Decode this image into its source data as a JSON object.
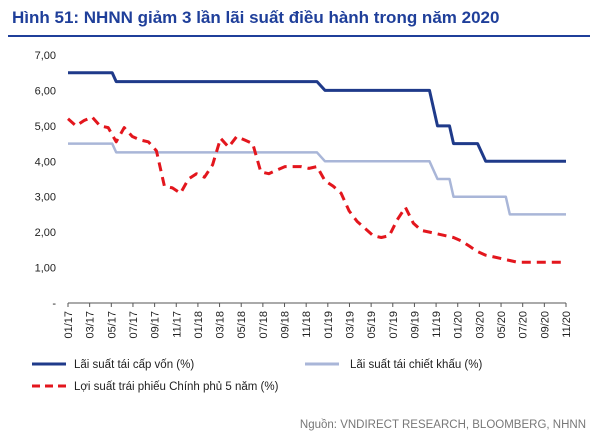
{
  "title": "Hình 51: NHNN giảm 3 lần lãi suất điều hành trong năm 2020",
  "source": "Nguồn: VNDIRECT RESEARCH, BLOOMBERG, NHNN",
  "colors": {
    "title": "#1f3f9a",
    "refinancing": "#1f3a8a",
    "discount": "#a9b6d8",
    "bond": "#e3161d"
  },
  "chart_data": {
    "type": "line",
    "ylim": [
      0,
      7
    ],
    "y_ticks": [
      "-",
      "1,00",
      "2,00",
      "3,00",
      "4,00",
      "5,00",
      "6,00",
      "7,00"
    ],
    "x_labels": [
      "01/17",
      "03/17",
      "05/17",
      "07/17",
      "09/17",
      "11/17",
      "01/18",
      "03/18",
      "05/18",
      "07/18",
      "09/18",
      "11/18",
      "01/19",
      "03/19",
      "05/19",
      "07/19",
      "09/19",
      "11/19",
      "01/20",
      "03/20",
      "05/20",
      "07/20",
      "09/20",
      "11/20"
    ],
    "grid": false,
    "legend_position": "bottom",
    "series": [
      {
        "name": "Lãi suất tái cấp vốn (%)",
        "style": "solid",
        "x": [
          0,
          5.5,
          6,
          31,
          32,
          45,
          46,
          47.5,
          48,
          49,
          49.5,
          51,
          52,
          54.5,
          55,
          57,
          58,
          59.5,
          60,
          62
        ],
        "values": [
          6.5,
          6.5,
          6.25,
          6.25,
          6.0,
          6.0,
          5.0,
          5.0,
          4.5,
          4.5,
          4.5,
          4.5,
          4.0,
          4.0,
          4.0,
          4.0,
          4.0,
          4.0,
          4.0,
          4.0
        ]
      },
      {
        "name": "Lãi suất tái chiết khấu (%)",
        "style": "solid",
        "x": [
          0,
          5.5,
          6,
          31,
          32,
          45,
          46,
          47.5,
          48,
          52,
          52.5,
          54.5,
          55,
          57,
          58,
          62
        ],
        "values": [
          4.5,
          4.5,
          4.25,
          4.25,
          4.0,
          4.0,
          3.5,
          3.5,
          3.0,
          3.0,
          3.0,
          3.0,
          2.5,
          2.5,
          2.5,
          2.5
        ]
      },
      {
        "name": "Lợi suất trái phiếu Chính phủ 5 năm (%)",
        "style": "dashed",
        "x": [
          0,
          1,
          2,
          3,
          4,
          5,
          6,
          7,
          8,
          9,
          10,
          11,
          12,
          13,
          14,
          15,
          16,
          17,
          18,
          19,
          20,
          21,
          22,
          23,
          24,
          25,
          26,
          27,
          28,
          29,
          30,
          31,
          32,
          33,
          34,
          35,
          36,
          37,
          38,
          39,
          40,
          41,
          42,
          43,
          44,
          45,
          46,
          47,
          48,
          49,
          50,
          51,
          52,
          53,
          54,
          55,
          56,
          57,
          58,
          59,
          60,
          61,
          62
        ],
        "values": [
          5.2,
          5.0,
          5.15,
          5.25,
          5.0,
          4.95,
          4.55,
          4.95,
          4.7,
          4.6,
          4.55,
          4.3,
          3.3,
          3.25,
          3.1,
          3.5,
          3.65,
          3.55,
          3.9,
          4.65,
          4.4,
          4.7,
          4.6,
          4.5,
          3.7,
          3.65,
          3.75,
          3.85,
          3.85,
          3.85,
          3.8,
          3.85,
          3.45,
          3.3,
          3.1,
          2.6,
          2.3,
          2.1,
          1.9,
          1.85,
          1.9,
          2.35,
          2.7,
          2.25,
          2.05,
          2.0,
          1.95,
          1.9,
          1.85,
          1.75,
          1.6,
          1.45,
          1.35,
          1.3,
          1.25,
          1.2,
          1.15,
          1.15,
          1.15,
          1.15,
          1.15,
          1.15,
          1.15
        ]
      }
    ]
  }
}
